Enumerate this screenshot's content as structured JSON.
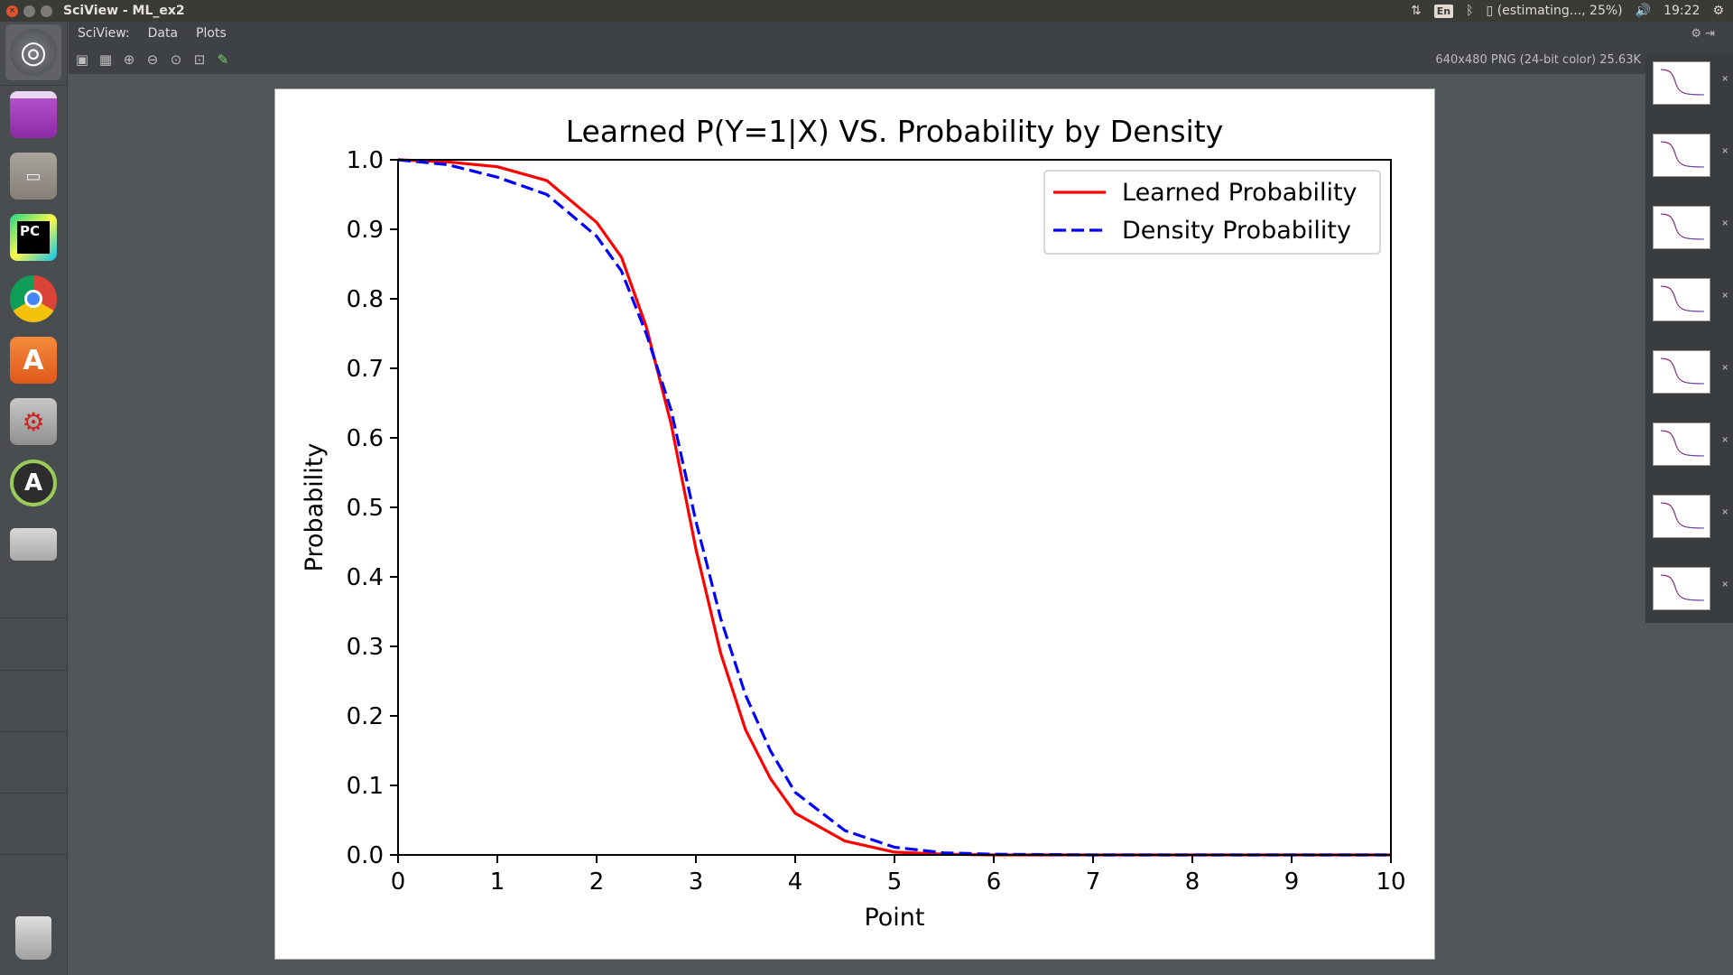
{
  "window": {
    "title": "SciView - ML_ex2"
  },
  "topbar": {
    "sort_icon": "⇅",
    "lang": "En",
    "bluetooth_icon": "ᛒ",
    "battery_text": "(estimating..., 25%)",
    "volume_icon": "🔊",
    "clock": "19:22",
    "settings_icon": "⚙"
  },
  "launcher": {
    "items": [
      {
        "name": "dash-home"
      },
      {
        "name": "purple-app"
      },
      {
        "name": "files"
      },
      {
        "name": "pycharm",
        "label": "PC"
      },
      {
        "name": "chrome"
      },
      {
        "name": "software-center",
        "label": "A"
      },
      {
        "name": "system-tools"
      },
      {
        "name": "software-updater",
        "label": "A"
      },
      {
        "name": "drive"
      },
      {
        "name": "trash"
      }
    ]
  },
  "menubar": {
    "items": [
      "SciView:",
      "Data",
      "Plots"
    ]
  },
  "toolbar": {
    "image_info": "640x480 PNG (24-bit color) 25.63K"
  },
  "thumbnails": {
    "count": 8,
    "close_glyph": "×"
  },
  "chart_data": {
    "type": "line",
    "title": "Learned P(Y=1|X) VS. Probability by Density",
    "xlabel": "Point",
    "ylabel": "Probability",
    "xlim": [
      0,
      10
    ],
    "ylim": [
      0,
      1
    ],
    "xticks": [
      "0",
      "1",
      "2",
      "3",
      "4",
      "5",
      "6",
      "7",
      "8",
      "9",
      "10"
    ],
    "yticks": [
      "0.0",
      "0.1",
      "0.2",
      "0.3",
      "0.4",
      "0.5",
      "0.6",
      "0.7",
      "0.8",
      "0.9",
      "1.0"
    ],
    "legend_position": "top-right",
    "series": [
      {
        "name": "Learned Probability",
        "color": "#ff0000",
        "style": "solid",
        "x": [
          0,
          0.5,
          1,
          1.5,
          2,
          2.25,
          2.5,
          2.75,
          3,
          3.25,
          3.5,
          3.75,
          4,
          4.5,
          5,
          5.5,
          6,
          7,
          8,
          9,
          10
        ],
        "y": [
          1.0,
          0.997,
          0.99,
          0.97,
          0.91,
          0.86,
          0.76,
          0.62,
          0.44,
          0.29,
          0.18,
          0.11,
          0.06,
          0.02,
          0.004,
          0.001,
          0.0,
          0.0,
          0.0,
          0.0,
          0.0
        ]
      },
      {
        "name": "Density Probability",
        "color": "#0000ff",
        "style": "dashed",
        "x": [
          0,
          0.5,
          1,
          1.5,
          2,
          2.25,
          2.5,
          2.75,
          3,
          3.25,
          3.5,
          3.75,
          4,
          4.5,
          5,
          5.5,
          6,
          7,
          8,
          9,
          10
        ],
        "y": [
          1.0,
          0.993,
          0.975,
          0.95,
          0.89,
          0.84,
          0.75,
          0.64,
          0.48,
          0.34,
          0.23,
          0.15,
          0.09,
          0.035,
          0.011,
          0.003,
          0.001,
          0.0,
          0.0,
          0.0,
          0.0
        ]
      }
    ]
  }
}
